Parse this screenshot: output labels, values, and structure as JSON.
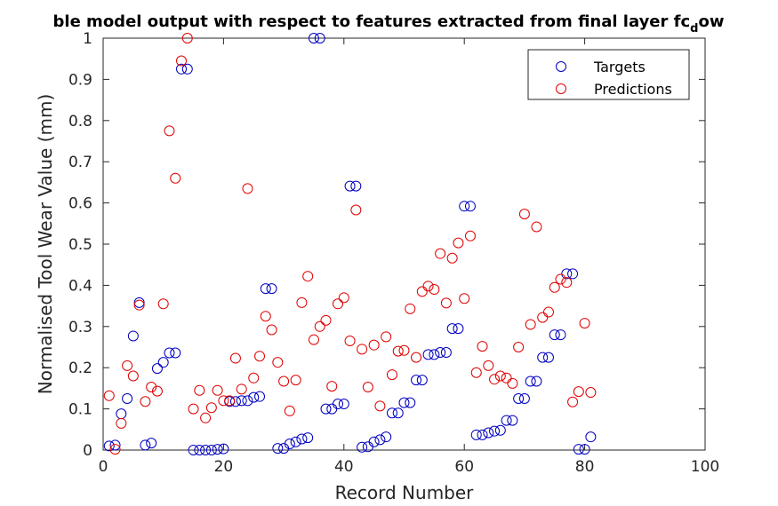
{
  "chart_data": {
    "type": "scatter",
    "title": "ble model output with respect to features extracted from final layer fc",
    "title_sub": "d",
    "title_tail": "ow",
    "xlabel": "Record Number",
    "ylabel": "Normalised Tool Wear Value (mm)",
    "xlim": [
      0,
      100
    ],
    "ylim": [
      0,
      1
    ],
    "xticks": [
      0,
      20,
      40,
      60,
      80,
      100
    ],
    "yticks": [
      0,
      0.1,
      0.2,
      0.3,
      0.4,
      0.5,
      0.6,
      0.7,
      0.8,
      0.9,
      1
    ],
    "ytick_labels": [
      "0",
      "0.1",
      "0.2",
      "0.3",
      "0.4",
      "0.5",
      "0.6",
      "0.7",
      "0.8",
      "0.9",
      "1"
    ],
    "grid": false,
    "legend_position": "top-right",
    "series": [
      {
        "name": "Targets",
        "color": "#0000c0",
        "x": [
          1,
          2,
          3,
          4,
          5,
          6,
          7,
          8,
          9,
          10,
          11,
          12,
          13,
          14,
          15,
          16,
          17,
          18,
          19,
          20,
          21,
          22,
          23,
          24,
          25,
          26,
          27,
          28,
          29,
          30,
          31,
          32,
          33,
          34,
          35,
          36,
          37,
          38,
          39,
          40,
          41,
          42,
          43,
          44,
          45,
          46,
          47,
          48,
          49,
          50,
          51,
          52,
          53,
          54,
          55,
          56,
          57,
          58,
          59,
          60,
          61,
          62,
          63,
          64,
          65,
          66,
          67,
          68,
          69,
          70,
          71,
          72,
          73,
          74,
          75,
          76,
          77,
          78,
          79,
          80,
          81
        ],
        "y": [
          0.01,
          0.012,
          0.088,
          0.125,
          0.277,
          0.358,
          0.012,
          0.017,
          0.198,
          0.213,
          0.236,
          0.236,
          0.925,
          0.925,
          0,
          0,
          0,
          0,
          0.002,
          0.003,
          0.118,
          0.118,
          0.12,
          0.12,
          0.128,
          0.13,
          0.392,
          0.392,
          0.004,
          0.004,
          0.015,
          0.02,
          0.027,
          0.03,
          1,
          1,
          0.1,
          0.1,
          0.112,
          0.112,
          0.641,
          0.641,
          0.007,
          0.008,
          0.02,
          0.025,
          0.032,
          0.09,
          0.09,
          0.115,
          0.115,
          0.17,
          0.17,
          0.232,
          0.232,
          0.237,
          0.237,
          0.295,
          0.295,
          0.592,
          0.592,
          0.037,
          0.037,
          0.042,
          0.046,
          0.048,
          0.072,
          0.072,
          0.125,
          0.125,
          0.167,
          0.167,
          0.225,
          0.225,
          0.28,
          0.28,
          0.428,
          0.428,
          0.002,
          0.002,
          0.032
        ]
      },
      {
        "name": "Predictions",
        "color": "#e00000",
        "x": [
          1,
          2,
          3,
          4,
          5,
          6,
          7,
          8,
          9,
          10,
          11,
          12,
          13,
          14,
          15,
          16,
          17,
          18,
          19,
          20,
          21,
          22,
          23,
          24,
          25,
          26,
          27,
          28,
          29,
          30,
          31,
          32,
          33,
          34,
          35,
          36,
          37,
          38,
          39,
          40,
          41,
          42,
          43,
          44,
          45,
          46,
          47,
          48,
          49,
          50,
          51,
          52,
          53,
          54,
          55,
          56,
          57,
          58,
          59,
          60,
          61,
          62,
          63,
          64,
          65,
          66,
          67,
          68,
          69,
          70,
          71,
          72,
          73,
          74,
          75,
          76,
          77,
          78,
          79,
          80,
          81
        ],
        "y": [
          0.132,
          0.002,
          0.065,
          0.205,
          0.18,
          0.352,
          0.118,
          0.153,
          0.143,
          0.355,
          0.775,
          0.66,
          0.945,
          1,
          0.1,
          0.145,
          0.078,
          0.103,
          0.145,
          0.12,
          0.12,
          0.223,
          0.148,
          0.635,
          0.175,
          0.228,
          0.325,
          0.292,
          0.213,
          0.167,
          0.095,
          0.17,
          0.358,
          0.422,
          0.268,
          0.3,
          0.315,
          0.155,
          0.355,
          0.37,
          0.265,
          0.583,
          0.245,
          0.153,
          0.255,
          0.107,
          0.275,
          0.183,
          0.24,
          0.242,
          0.343,
          0.225,
          0.385,
          0.398,
          0.39,
          0.477,
          0.357,
          0.466,
          0.503,
          0.368,
          0.52,
          0.188,
          0.252,
          0.205,
          0.172,
          0.18,
          0.175,
          0.162,
          0.25,
          0.573,
          0.305,
          0.542,
          0.322,
          0.335,
          0.395,
          0.415,
          0.407,
          0.117,
          0.142,
          0.308,
          0.14
        ]
      }
    ]
  }
}
